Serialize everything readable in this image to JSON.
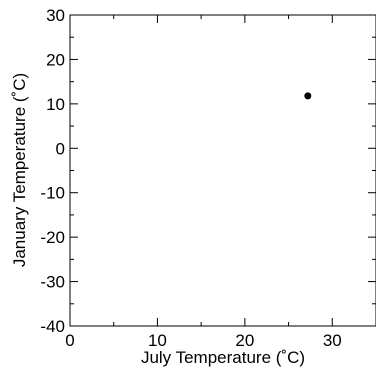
{
  "chart_data": {
    "type": "scatter",
    "title": "",
    "xlabel": "July Temperature (˚C)",
    "ylabel": "January Temperature (˚C)",
    "xlim": [
      0,
      35
    ],
    "ylim": [
      -40,
      30
    ],
    "x_ticks": [
      0,
      10,
      20,
      30
    ],
    "y_ticks": [
      -40,
      -30,
      -20,
      -10,
      0,
      10,
      20,
      30
    ],
    "grid": false,
    "points": [
      {
        "x": 27.2,
        "y": 11.8
      }
    ],
    "marker_color": "#000000"
  }
}
